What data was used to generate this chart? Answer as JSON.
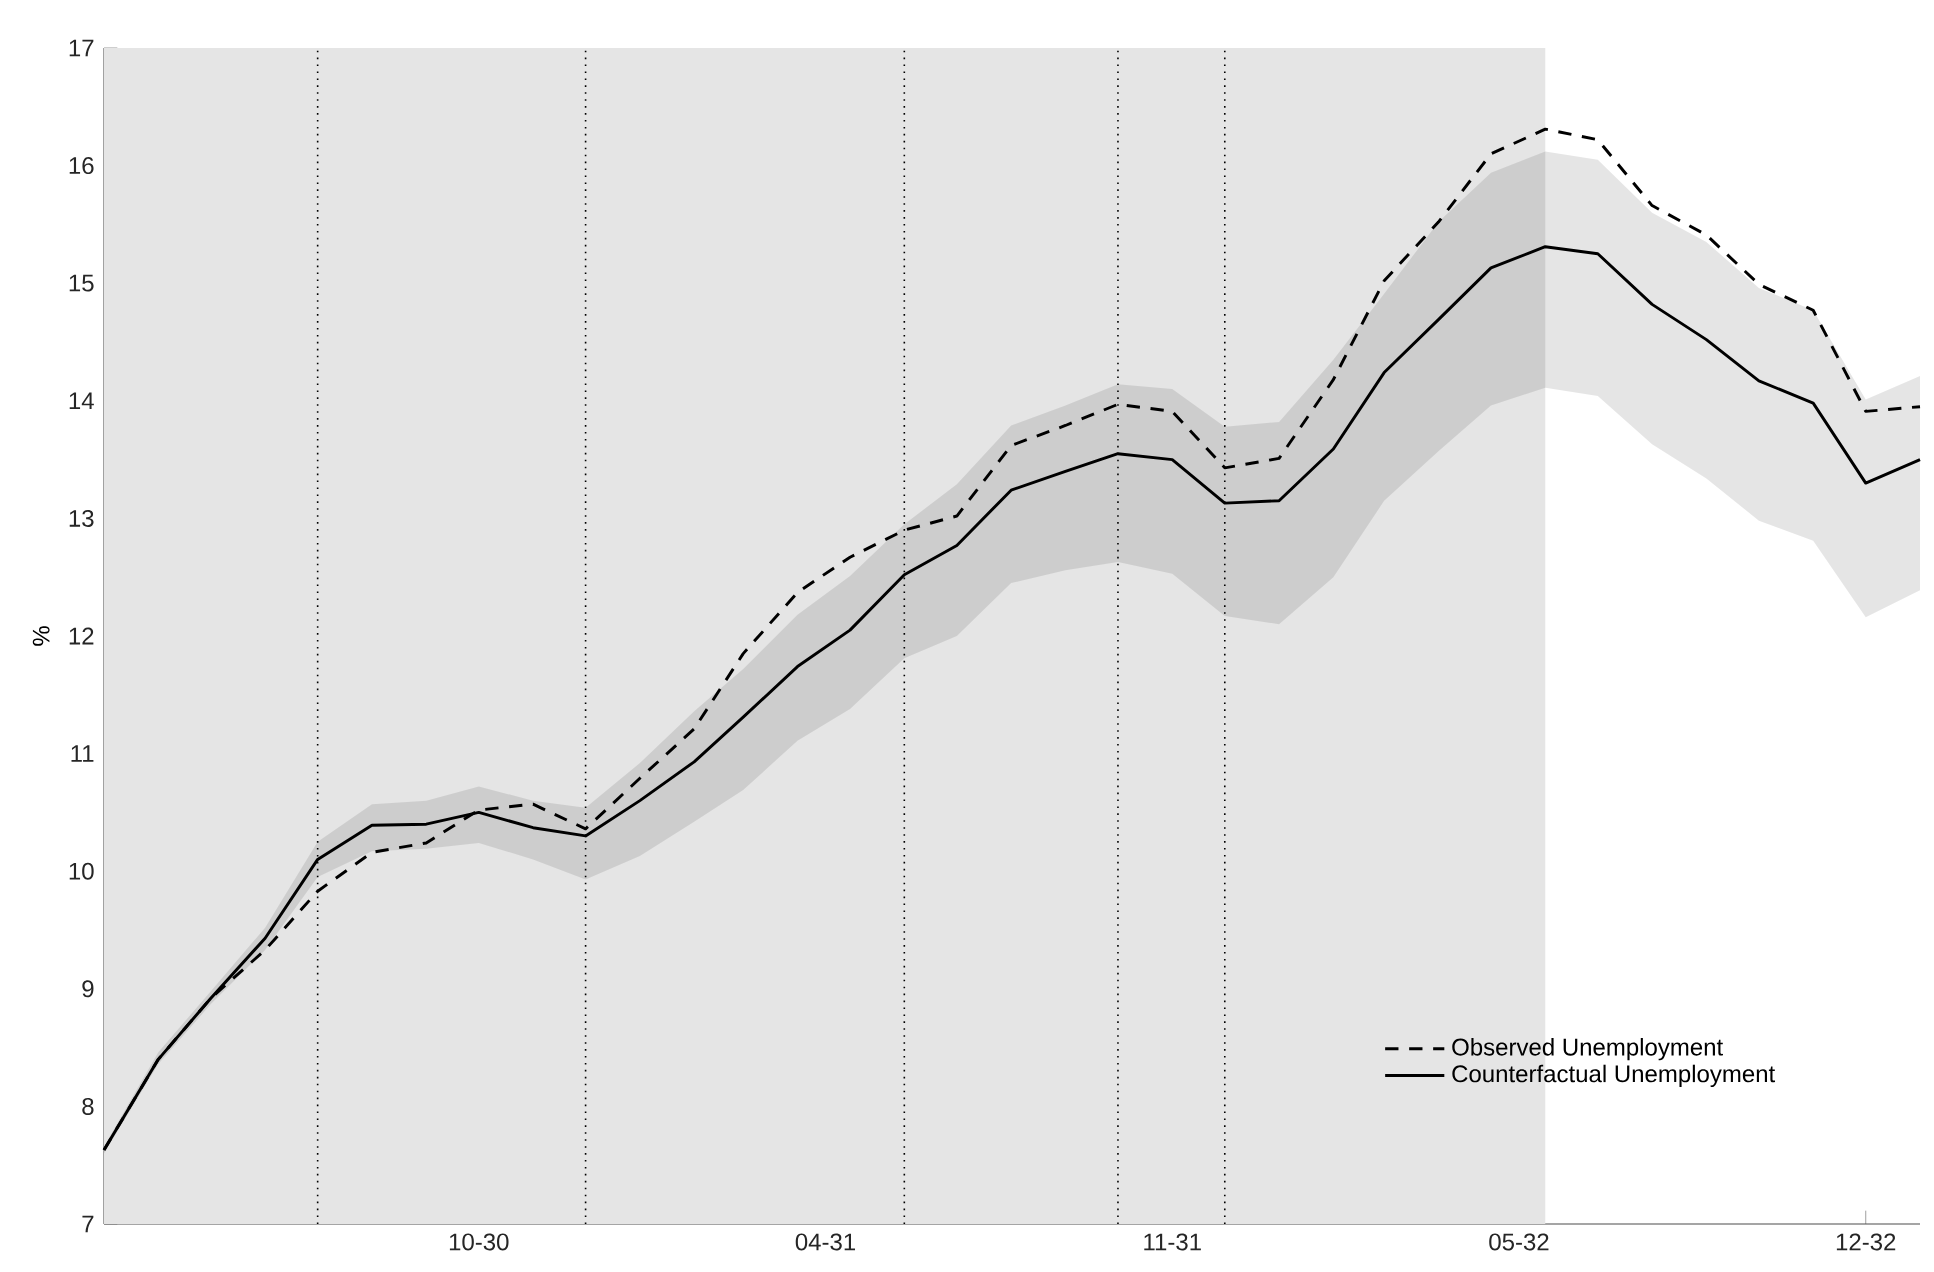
{
  "chart_data": {
    "type": "line",
    "ylabel": "%",
    "x": [
      "1930-03",
      "1930-04",
      "1930-05",
      "1930-06",
      "1930-07",
      "1930-08",
      "1930-09",
      "1930-10",
      "1930-11",
      "1930-12",
      "1931-01",
      "1931-02",
      "1931-03",
      "1931-04",
      "1931-05",
      "1931-06",
      "1931-07",
      "1931-08",
      "1931-09",
      "1931-10",
      "1931-11",
      "1931-12",
      "1932-01",
      "1932-02",
      "1932-03",
      "1932-04",
      "1932-05",
      "1932-06",
      "1932-07",
      "1932-08",
      "1932-09",
      "1932-10",
      "1932-11",
      "1932-12",
      "1933-01"
    ],
    "xlim": [
      "1930-03",
      "1933-01"
    ],
    "xticks": [
      {
        "value": "1930-10-01",
        "label": "10-30"
      },
      {
        "value": "1931-04-17",
        "label": "04-31"
      },
      {
        "value": "1931-11-01",
        "label": "11-31"
      },
      {
        "value": "1932-05-17",
        "label": "05-32"
      },
      {
        "value": "1932-12-01",
        "label": "12-32"
      }
    ],
    "ylim": [
      7,
      17
    ],
    "yticks": [
      7,
      8,
      9,
      10,
      11,
      12,
      13,
      14,
      15,
      16,
      17
    ],
    "series": [
      {
        "name": "Observed Unemployment",
        "color": "#000000",
        "line_style": "dashed",
        "values": [
          7.63,
          8.4,
          8.92,
          9.33,
          9.83,
          10.16,
          10.24,
          10.52,
          10.57,
          10.36,
          10.79,
          11.21,
          11.85,
          12.37,
          12.67,
          12.9,
          13.02,
          13.62,
          13.79,
          13.97,
          13.91,
          13.43,
          13.51,
          14.18,
          15.02,
          15.52,
          16.1,
          16.31,
          16.22,
          15.66,
          15.41,
          14.99,
          14.77,
          13.91,
          13.95
        ]
      },
      {
        "name": "Counterfactual Unemployment",
        "color": "#000000",
        "line_style": "solid",
        "values": [
          7.63,
          8.4,
          8.92,
          9.43,
          10.1,
          10.39,
          10.4,
          10.5,
          10.37,
          10.3,
          10.6,
          10.93,
          11.31,
          11.74,
          12.05,
          12.52,
          12.77,
          13.24,
          13.4,
          13.55,
          13.5,
          13.13,
          13.15,
          13.59,
          14.24,
          14.69,
          15.13,
          15.31,
          15.25,
          14.82,
          14.52,
          14.17,
          13.98,
          13.3,
          13.5
        ],
        "lower": [
          7.6,
          8.36,
          8.87,
          9.33,
          9.95,
          10.17,
          10.19,
          10.24,
          10.1,
          9.93,
          10.13,
          10.42,
          10.69,
          11.11,
          11.38,
          11.81,
          12.0,
          12.45,
          12.56,
          12.63,
          12.53,
          12.17,
          12.1,
          12.5,
          13.15,
          13.57,
          13.96,
          14.11,
          14.04,
          13.63,
          13.34,
          12.98,
          12.81,
          12.16,
          12.39
        ],
        "upper": [
          7.66,
          8.46,
          8.98,
          9.52,
          10.25,
          10.57,
          10.6,
          10.72,
          10.6,
          10.54,
          10.92,
          11.36,
          11.72,
          12.18,
          12.51,
          12.95,
          13.29,
          13.79,
          13.96,
          14.14,
          14.1,
          13.78,
          13.82,
          14.35,
          14.91,
          15.52,
          15.94,
          16.12,
          16.05,
          15.6,
          15.35,
          14.96,
          14.77,
          14.01,
          14.21
        ]
      }
    ],
    "bands": [
      {
        "axis": "x",
        "from": "1930-03",
        "to": "1932-06",
        "color": "#e5e5e5"
      }
    ],
    "ref_lines": [
      {
        "axis": "x",
        "value": "1930-07",
        "line_style": "dotted"
      },
      {
        "axis": "x",
        "value": "1930-12",
        "line_style": "dotted"
      },
      {
        "axis": "x",
        "value": "1931-06",
        "line_style": "dotted"
      },
      {
        "axis": "x",
        "value": "1931-10",
        "line_style": "dotted"
      },
      {
        "axis": "x",
        "value": "1931-12",
        "line_style": "dotted"
      }
    ],
    "legend": "bottom right",
    "grid": false
  }
}
